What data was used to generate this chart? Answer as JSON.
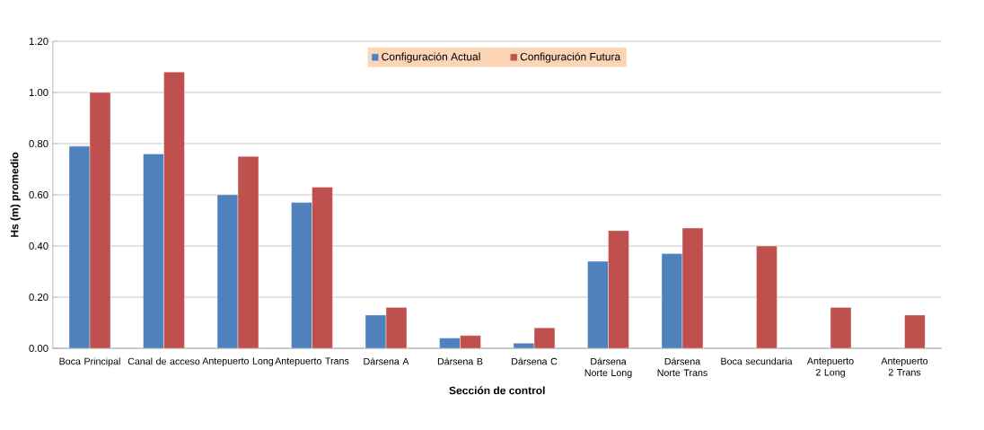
{
  "chart_data": {
    "type": "bar",
    "xlabel": "Sección de control",
    "ylabel": "Hs (m) promedio",
    "categories": [
      "Boca Principal",
      "Canal de acceso",
      "Antepuerto Long",
      "Antepuerto Trans",
      "Dársena A",
      "Dársena B",
      "Dársena C",
      "Dársena Norte Long",
      "Dársena Norte Trans",
      "Boca secundaria",
      "Antepuerto 2 Long",
      "Antepuerto 2 Trans"
    ],
    "series": [
      {
        "name": "Configuración Actual",
        "color": "#4f81bd",
        "values": [
          0.79,
          0.76,
          0.6,
          0.57,
          0.13,
          0.04,
          0.02,
          0.34,
          0.37,
          null,
          null,
          null
        ]
      },
      {
        "name": "Configuración Futura",
        "color": "#c0504d",
        "values": [
          1.0,
          1.08,
          0.75,
          0.63,
          0.16,
          0.05,
          0.08,
          0.46,
          0.47,
          0.4,
          0.16,
          0.13
        ]
      }
    ],
    "ylim": [
      0,
      1.2
    ],
    "yticks": [
      {
        "value": 0,
        "label": "0.00"
      },
      {
        "value": 0.2,
        "label": "0.20"
      },
      {
        "value": 0.4,
        "label": "0.40"
      },
      {
        "value": 0.6,
        "label": "0.60"
      },
      {
        "value": 0.8,
        "label": "0.80"
      },
      {
        "value": 1.0,
        "label": "1.00"
      },
      {
        "value": 1.2,
        "label": "1.20"
      }
    ],
    "grid": "y",
    "legend": "top"
  }
}
